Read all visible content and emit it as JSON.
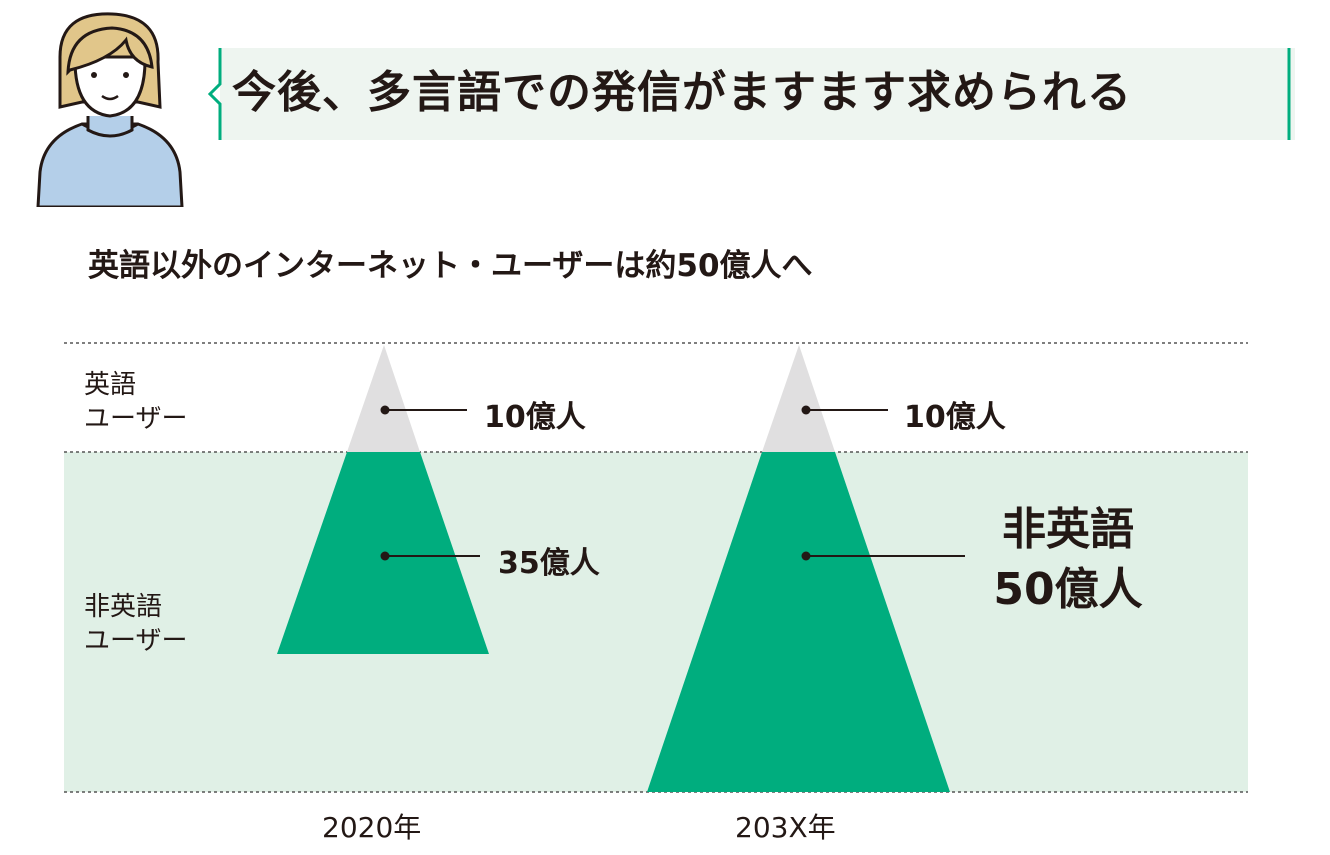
{
  "header": {
    "headline": "今後、多言語での発信がますます求められる",
    "accent_color": "#00ad7e",
    "bubble_bg": "#eef5f0"
  },
  "subtitle": "英語以外のインターネット・ユーザーは約50億人へ",
  "diagram": {
    "row_labels": {
      "english": [
        "英語",
        "ユーザー"
      ],
      "non_english": [
        "非英語",
        "ユーザー"
      ]
    },
    "colors": {
      "english_tip": "#e0dfe0",
      "non_english": "#00ad7e",
      "band": "#e0f0e6",
      "line": "#231815"
    },
    "groups": [
      {
        "year": "2020年",
        "english_users": 10,
        "non_english_users": 35,
        "english_label": "10億人",
        "non_english_label": "35億人"
      },
      {
        "year": "203X年",
        "english_users": 10,
        "non_english_users": 50,
        "english_label": "10億人",
        "non_english_label_lines": [
          "非英語",
          "50億人"
        ]
      }
    ]
  }
}
